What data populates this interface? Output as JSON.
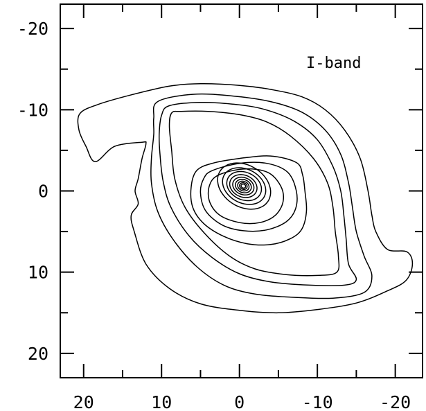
{
  "chart_data": {
    "type": "contour",
    "annotation": "I-band",
    "x_ticks": [
      20,
      10,
      0,
      -10,
      -20
    ],
    "y_ticks": [
      -20,
      -10,
      0,
      10,
      20
    ],
    "xlim": [
      23,
      -23.5
    ],
    "ylim": [
      -23,
      23
    ],
    "x_reversed": true,
    "y_inverted": true,
    "grid": false,
    "colors": {
      "line": "#000000",
      "background": "#ffffff"
    },
    "contours": [
      {
        "level": 1,
        "points": [
          [
            18.3,
            -10.6
          ],
          [
            14,
            -11.8
          ],
          [
            9,
            -12.9
          ],
          [
            5,
            -13.2
          ],
          [
            0,
            -13
          ],
          [
            -4,
            -12.5
          ],
          [
            -8,
            -11.6
          ],
          [
            -11,
            -10
          ],
          [
            -13.5,
            -7.5
          ],
          [
            -15.5,
            -4
          ],
          [
            -16.5,
            0
          ],
          [
            -17,
            3
          ],
          [
            -17.5,
            5
          ],
          [
            -19,
            7.2
          ],
          [
            -21.5,
            7.5
          ],
          [
            -22.2,
            9
          ],
          [
            -21.4,
            11
          ],
          [
            -19,
            12.3
          ],
          [
            -15,
            13.8
          ],
          [
            -10,
            14.6
          ],
          [
            -5,
            15
          ],
          [
            0,
            14.7
          ],
          [
            5,
            13.9
          ],
          [
            9,
            12
          ],
          [
            12,
            9
          ],
          [
            13.5,
            5
          ],
          [
            13.9,
            3
          ],
          [
            13,
            1.6
          ],
          [
            13.4,
            0
          ],
          [
            13,
            -1.5
          ],
          [
            12.5,
            -4
          ],
          [
            12,
            -5.8
          ],
          [
            12.5,
            -6
          ],
          [
            16,
            -5.5
          ],
          [
            18.5,
            -3.6
          ],
          [
            19.7,
            -5.5
          ],
          [
            20.6,
            -7.5
          ],
          [
            20.5,
            -9.5
          ]
        ]
      },
      {
        "level": 2,
        "points": [
          [
            10.5,
            -11
          ],
          [
            6,
            -11.9
          ],
          [
            1,
            -11.7
          ],
          [
            -4,
            -11
          ],
          [
            -8,
            -9.7
          ],
          [
            -11,
            -7.5
          ],
          [
            -13,
            -4.5
          ],
          [
            -14,
            -1
          ],
          [
            -14.5,
            2
          ],
          [
            -15,
            5
          ],
          [
            -16,
            8
          ],
          [
            -17,
            10.5
          ],
          [
            -16,
            12.5
          ],
          [
            -12,
            13.2
          ],
          [
            -7,
            13.1
          ],
          [
            -2,
            12.7
          ],
          [
            2,
            11.6
          ],
          [
            5.5,
            9.3
          ],
          [
            8.5,
            6
          ],
          [
            10.5,
            2.5
          ],
          [
            11.3,
            -1
          ],
          [
            11.3,
            -4
          ],
          [
            11,
            -7
          ],
          [
            11,
            -9
          ]
        ]
      },
      {
        "level": 3,
        "points": [
          [
            9,
            -10.5
          ],
          [
            5,
            -10.9
          ],
          [
            1,
            -10.7
          ],
          [
            -3,
            -10.1
          ],
          [
            -7,
            -8.6
          ],
          [
            -10,
            -6.3
          ],
          [
            -12,
            -3
          ],
          [
            -13,
            0
          ],
          [
            -13.4,
            3
          ],
          [
            -13.7,
            6
          ],
          [
            -14,
            9
          ],
          [
            -15,
            10.9
          ],
          [
            -13.5,
            11.6
          ],
          [
            -9,
            11.6
          ],
          [
            -4,
            11.2
          ],
          [
            0,
            10.2
          ],
          [
            3.5,
            8.2
          ],
          [
            6.5,
            5.5
          ],
          [
            8.8,
            2
          ],
          [
            9.8,
            -1.2
          ],
          [
            10.2,
            -4.5
          ],
          [
            10.3,
            -7
          ],
          [
            10,
            -9.3
          ]
        ]
      },
      {
        "level": 4,
        "points": [
          [
            7.5,
            -9.8
          ],
          [
            4,
            -9.8
          ],
          [
            0,
            -9.4
          ],
          [
            -3.5,
            -8.5
          ],
          [
            -6.5,
            -6.8
          ],
          [
            -9.5,
            -4
          ],
          [
            -11.3,
            -1
          ],
          [
            -12,
            2
          ],
          [
            -12.3,
            5
          ],
          [
            -12.7,
            8
          ],
          [
            -12.5,
            10
          ],
          [
            -10,
            10.4
          ],
          [
            -6,
            10.3
          ],
          [
            -2,
            9.6
          ],
          [
            1.3,
            8
          ],
          [
            4.5,
            5.2
          ],
          [
            7,
            2
          ],
          [
            8.3,
            -1.5
          ],
          [
            8.7,
            -5
          ],
          [
            9,
            -8
          ],
          [
            8.7,
            -9.6
          ]
        ]
      },
      {
        "level": 5,
        "points": [
          [
            3.5,
            -3.4
          ],
          [
            0,
            -4
          ],
          [
            -4,
            -4.3
          ],
          [
            -7.3,
            -3.5
          ],
          [
            -8.1,
            -2
          ],
          [
            -8.4,
            0
          ],
          [
            -8.6,
            2.5
          ],
          [
            -8,
            4.7
          ],
          [
            -6.5,
            5.9
          ],
          [
            -4,
            6.6
          ],
          [
            -1,
            6.5
          ],
          [
            2,
            5.6
          ],
          [
            4.6,
            4
          ],
          [
            6,
            2
          ],
          [
            6.2,
            -0.5
          ],
          [
            5.5,
            -2.5
          ]
        ]
      },
      {
        "level": 6,
        "points": [
          [
            3.5,
            -2.5
          ],
          [
            0,
            -3.4
          ],
          [
            -3.5,
            -3.4
          ],
          [
            -6.2,
            -2.3
          ],
          [
            -7.3,
            0
          ],
          [
            -7.2,
            2.2
          ],
          [
            -6,
            3.8
          ],
          [
            -3.5,
            4.8
          ],
          [
            -0.5,
            4.9
          ],
          [
            2.2,
            4.2
          ],
          [
            4.3,
            2.5
          ],
          [
            5,
            0.3
          ],
          [
            4.6,
            -1.5
          ]
        ]
      },
      {
        "level": 7,
        "points": [
          [
            2.8,
            -1.9
          ],
          [
            -0.5,
            -2.7
          ],
          [
            -3.6,
            -2.3
          ],
          [
            -5.3,
            -0.6
          ],
          [
            -5.6,
            1.3
          ],
          [
            -4.6,
            3
          ],
          [
            -2.6,
            3.9
          ],
          [
            0,
            3.9
          ],
          [
            2.5,
            3
          ],
          [
            3.8,
            1.4
          ],
          [
            3.9,
            -0.5
          ]
        ]
      },
      {
        "level": 8,
        "center": [
          -0.6,
          -0.6
        ],
        "rx": 3.6,
        "ry": 2.6,
        "rot_deg": -28
      },
      {
        "level": 9,
        "center": [
          -0.6,
          -0.6
        ],
        "rx": 2.9,
        "ry": 2.1,
        "rot_deg": -25
      },
      {
        "level": 10,
        "center": [
          -0.6,
          -0.6
        ],
        "rx": 2.3,
        "ry": 1.7,
        "rot_deg": -22
      },
      {
        "level": 11,
        "center": [
          -0.5,
          -0.6
        ],
        "rx": 1.8,
        "ry": 1.35,
        "rot_deg": -20
      },
      {
        "level": 12,
        "center": [
          -0.5,
          -0.6
        ],
        "rx": 1.4,
        "ry": 1.05,
        "rot_deg": -20
      },
      {
        "level": 13,
        "center": [
          -0.5,
          -0.6
        ],
        "rx": 1.05,
        "ry": 0.8,
        "rot_deg": -20
      },
      {
        "level": 14,
        "center": [
          -0.5,
          -0.6
        ],
        "rx": 0.75,
        "ry": 0.58,
        "rot_deg": -20
      },
      {
        "level": 15,
        "center": [
          -0.5,
          -0.6
        ],
        "rx": 0.5,
        "ry": 0.4,
        "rot_deg": -20
      },
      {
        "level": 16,
        "center": [
          -0.5,
          -0.6
        ],
        "rx": 0.3,
        "ry": 0.24,
        "rot_deg": -20
      }
    ]
  }
}
